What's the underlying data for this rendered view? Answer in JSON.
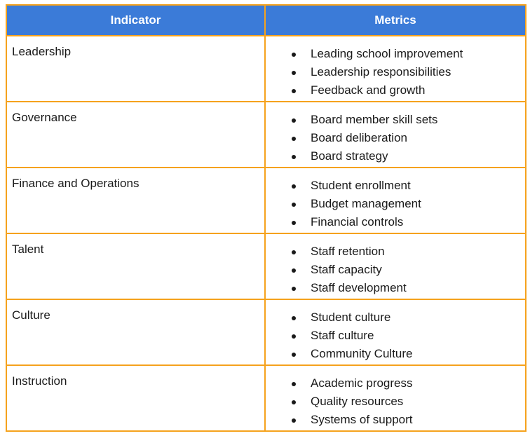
{
  "header": {
    "indicator": "Indicator",
    "metrics": "Metrics"
  },
  "rows": [
    {
      "indicator": "Leadership",
      "metrics": [
        "Leading school improvement",
        "Leadership responsibilities",
        "Feedback and growth"
      ]
    },
    {
      "indicator": "Governance",
      "metrics": [
        "Board member skill sets",
        "Board deliberation",
        "Board strategy"
      ]
    },
    {
      "indicator": "Finance and Operations",
      "metrics": [
        "Student enrollment",
        "Budget management",
        "Financial controls"
      ]
    },
    {
      "indicator": "Talent",
      "metrics": [
        "Staff retention",
        "Staff capacity",
        "Staff development"
      ]
    },
    {
      "indicator": "Culture",
      "metrics": [
        "Student culture",
        "Staff culture",
        "Community Culture"
      ]
    },
    {
      "indicator": "Instruction",
      "metrics": [
        "Academic progress",
        "Quality resources",
        "Systems of support"
      ]
    }
  ],
  "colors": {
    "header_bg": "#3b7bd8",
    "border": "#f5a21d"
  }
}
